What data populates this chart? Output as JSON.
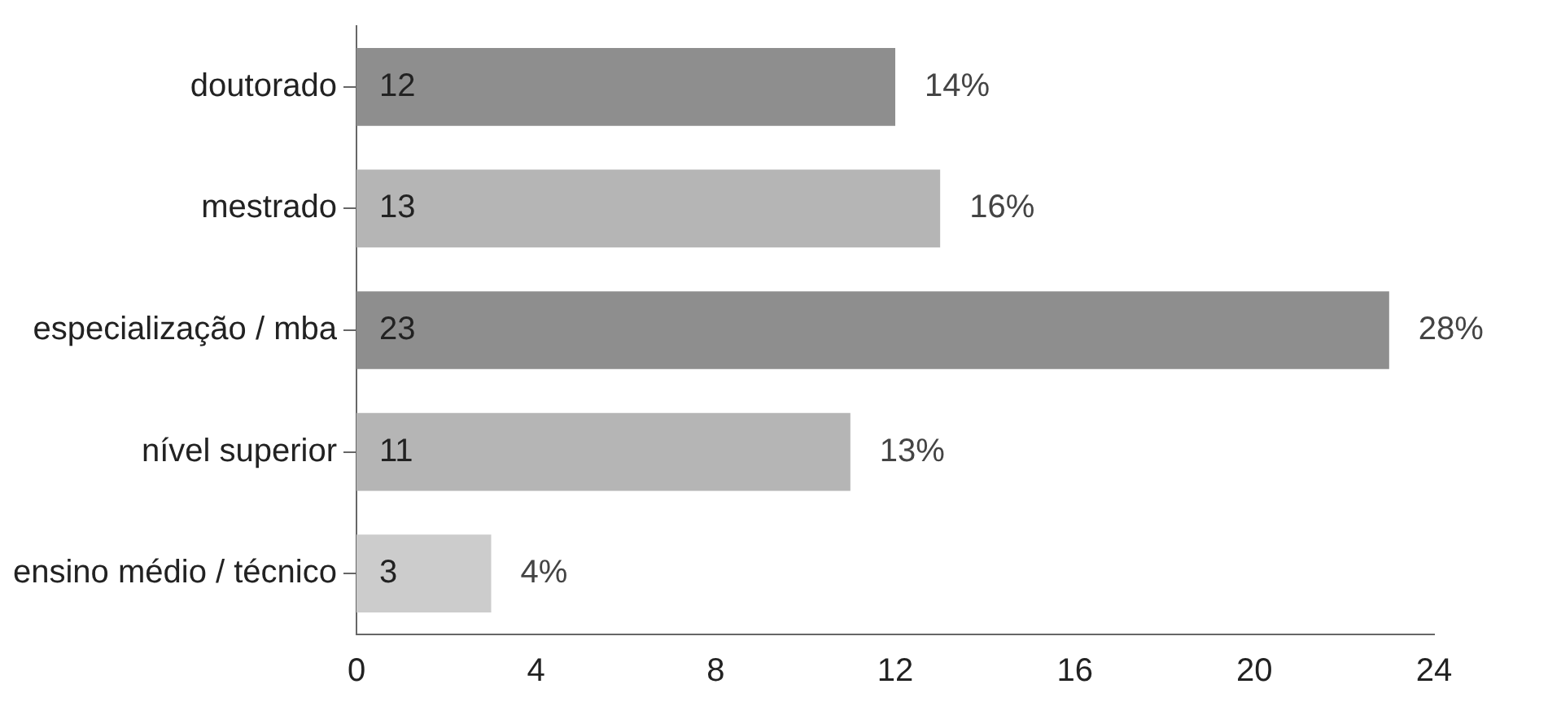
{
  "chart_data": {
    "type": "bar",
    "orientation": "horizontal",
    "categories": [
      "doutorado",
      "mestrado",
      "especialização / mba",
      "nível superior",
      "ensino médio / técnico"
    ],
    "values": [
      12,
      13,
      23,
      11,
      3
    ],
    "colors": [
      "#8e8e8e",
      "#b5b5b5",
      "#8e8e8e",
      "#b5b5b5",
      "#cccccc"
    ],
    "value_labels": [
      "12",
      "13",
      "23",
      "11",
      "3"
    ],
    "annotations": [
      {
        "text": "14%",
        "x": 12,
        "y": "doutorado"
      },
      {
        "text": "16%",
        "x": 13,
        "y": "mestrado"
      },
      {
        "text": "28%",
        "x": 23,
        "y": "especialização / mba"
      },
      {
        "text": "13%",
        "x": 11,
        "y": "nível superior"
      },
      {
        "text": "4%",
        "x": 3,
        "y": "ensino médio / técnico"
      }
    ],
    "xlim": [
      0,
      24
    ],
    "xticks": [
      0,
      4,
      8,
      12,
      16,
      20,
      24
    ],
    "grid": false,
    "legend": false
  }
}
